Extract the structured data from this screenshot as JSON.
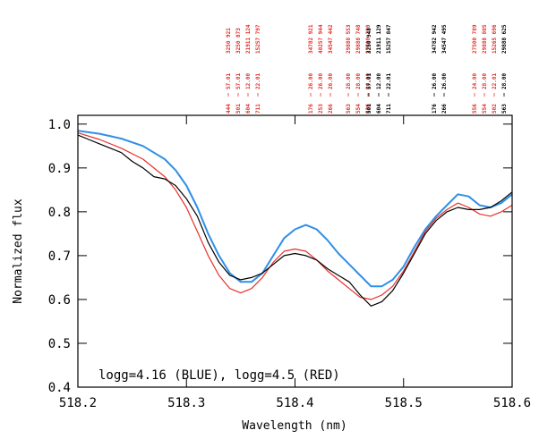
{
  "chart_data": {
    "type": "line",
    "title": "",
    "xlabel": "Wavelength (nm)",
    "ylabel": "Normalized flux",
    "xlim": [
      518.2,
      518.6
    ],
    "ylim": [
      0.4,
      1.02
    ],
    "x_ticks": [
      518.2,
      518.3,
      518.4,
      518.5,
      518.6
    ],
    "x_tick_labels": [
      "518.2",
      "518.3",
      "518.4",
      "518.5",
      "518.6"
    ],
    "y_ticks": [
      0.4,
      0.5,
      0.6,
      0.7,
      0.8,
      0.9,
      1.0
    ],
    "y_tick_labels": [
      "0.4",
      "0.5",
      "0.6",
      "0.7",
      "0.8",
      "0.9",
      "1.0"
    ],
    "grid": false,
    "annotation": "logg=4.16 (BLUE), logg=4.5 (RED)",
    "colors": {
      "blue": "#2f8fe8",
      "red": "#e8302a",
      "black": "#000000"
    },
    "series": [
      {
        "color": "#2f8fe8",
        "x": [
          518.2,
          518.22,
          518.24,
          518.26,
          518.28,
          518.29,
          518.3,
          518.31,
          518.32,
          518.33,
          518.34,
          518.35,
          518.36,
          518.37,
          518.38,
          518.39,
          518.4,
          518.41,
          518.42,
          518.43,
          518.44,
          518.45,
          518.46,
          518.47,
          518.48,
          518.49,
          518.5,
          518.51,
          518.52,
          518.53,
          518.54,
          518.55,
          518.56,
          518.57,
          518.58,
          518.59,
          518.6
        ],
        "y": [
          0.985,
          0.978,
          0.967,
          0.95,
          0.92,
          0.895,
          0.86,
          0.81,
          0.75,
          0.7,
          0.66,
          0.64,
          0.64,
          0.66,
          0.7,
          0.74,
          0.76,
          0.77,
          0.76,
          0.735,
          0.705,
          0.68,
          0.655,
          0.63,
          0.63,
          0.645,
          0.675,
          0.72,
          0.76,
          0.79,
          0.815,
          0.84,
          0.835,
          0.815,
          0.81,
          0.82,
          0.84
        ]
      },
      {
        "color": "#e8302a",
        "x": [
          518.2,
          518.22,
          518.24,
          518.26,
          518.28,
          518.29,
          518.3,
          518.31,
          518.32,
          518.33,
          518.34,
          518.35,
          518.36,
          518.37,
          518.38,
          518.39,
          518.4,
          518.41,
          518.42,
          518.43,
          518.44,
          518.45,
          518.46,
          518.47,
          518.48,
          518.49,
          518.5,
          518.51,
          518.52,
          518.53,
          518.54,
          518.55,
          518.56,
          518.57,
          518.58,
          518.59,
          518.6
        ],
        "y": [
          0.98,
          0.965,
          0.945,
          0.92,
          0.88,
          0.85,
          0.81,
          0.755,
          0.7,
          0.655,
          0.625,
          0.615,
          0.625,
          0.65,
          0.685,
          0.71,
          0.715,
          0.71,
          0.69,
          0.665,
          0.645,
          0.625,
          0.605,
          0.6,
          0.61,
          0.63,
          0.665,
          0.71,
          0.755,
          0.785,
          0.805,
          0.82,
          0.81,
          0.795,
          0.79,
          0.8,
          0.815
        ]
      },
      {
        "color": "#000000",
        "x": [
          518.2,
          518.21,
          518.22,
          518.23,
          518.24,
          518.25,
          518.26,
          518.27,
          518.28,
          518.29,
          518.3,
          518.31,
          518.32,
          518.33,
          518.34,
          518.35,
          518.36,
          518.37,
          518.38,
          518.39,
          518.4,
          518.41,
          518.42,
          518.43,
          518.44,
          518.45,
          518.46,
          518.47,
          518.48,
          518.49,
          518.5,
          518.51,
          518.52,
          518.53,
          518.54,
          518.55,
          518.56,
          518.57,
          518.58,
          518.59,
          518.6
        ],
        "y": [
          0.975,
          0.965,
          0.955,
          0.945,
          0.935,
          0.915,
          0.9,
          0.88,
          0.875,
          0.86,
          0.83,
          0.79,
          0.73,
          0.685,
          0.655,
          0.645,
          0.65,
          0.66,
          0.68,
          0.7,
          0.705,
          0.7,
          0.69,
          0.67,
          0.655,
          0.64,
          0.61,
          0.585,
          0.595,
          0.62,
          0.66,
          0.705,
          0.75,
          0.78,
          0.8,
          0.81,
          0.805,
          0.805,
          0.81,
          0.825,
          0.845
        ]
      }
    ],
    "line_ids": {
      "red": [
        [
          "444",
          "57.01",
          "3250 921"
        ],
        [
          "501",
          "57.01",
          "3250 873"
        ],
        [
          "604",
          "12.00",
          "21911 124"
        ],
        [
          "711",
          "22.01",
          "15257 797"
        ],
        [
          "176",
          "26.00",
          "34782 921"
        ],
        [
          "253",
          "26.00",
          "40257 944"
        ],
        [
          "266",
          "26.00",
          "34547 442"
        ],
        [
          "563",
          "28.00",
          "29888 553"
        ],
        [
          "554",
          "28.00",
          "29888 748"
        ],
        [
          "536",
          "24.00",
          "27500 230"
        ],
        [
          "556",
          "24.00",
          "27500 789"
        ],
        [
          "554",
          "28.00",
          "29888 805"
        ],
        [
          "502",
          "22.01",
          "15265 696"
        ]
      ],
      "black": [
        [
          "501",
          "57.01",
          "3250 948"
        ],
        [
          "604",
          "12.00",
          "21911 129"
        ],
        [
          "711",
          "22.01",
          "15257 847"
        ],
        [
          "176",
          "26.00",
          "34782 942"
        ],
        [
          "266",
          "26.00",
          "34547 495"
        ],
        [
          "563",
          "28.00",
          "29888 625"
        ]
      ]
    }
  }
}
